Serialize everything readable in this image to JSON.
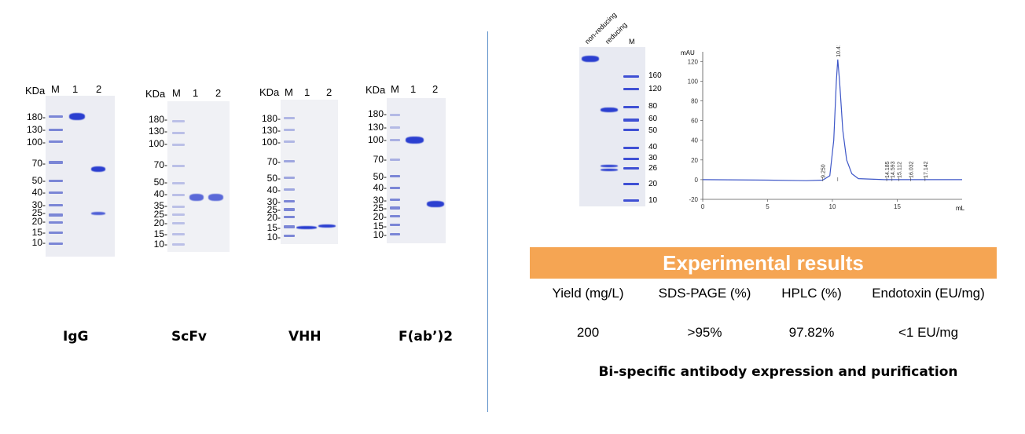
{
  "gels": [
    {
      "caption": "IgG",
      "header": {
        "kda": "KDa",
        "m": "M",
        "lane1": "1",
        "lane2": "2"
      },
      "mw_labels": [
        "180-",
        "130-",
        "100-",
        "70-",
        "50-",
        "40-",
        "30-",
        "25-",
        "20-",
        "15-",
        "10-"
      ]
    },
    {
      "caption": "ScFv",
      "header": {
        "kda": "KDa",
        "m": "M",
        "lane1": "1",
        "lane2": "2"
      },
      "mw_labels": [
        "180-",
        "130-",
        "100-",
        "70-",
        "50-",
        "40-",
        "35-",
        "25-",
        "20-",
        "15-",
        "10-"
      ]
    },
    {
      "caption": "VHH",
      "header": {
        "kda": "KDa",
        "m": "M",
        "lane1": "1",
        "lane2": "2"
      },
      "mw_labels": [
        "180-",
        "130-",
        "100-",
        "70-",
        "50-",
        "40-",
        "30-",
        "25-",
        "20-",
        "15-",
        "10-"
      ]
    },
    {
      "caption": "F(ab’)2",
      "header": {
        "kda": "KDa",
        "m": "M",
        "lane1": "1",
        "lane2": "2"
      },
      "mw_labels": [
        "180-",
        "130-",
        "100-",
        "70-",
        "50-",
        "40-",
        "30-",
        "25-",
        "20-",
        "15-",
        "10-"
      ]
    }
  ],
  "bispecific_gel": {
    "lane_labels": [
      "non-reducing",
      "reducing",
      "M"
    ],
    "mw_labels": [
      "160",
      "120",
      "80",
      "60",
      "50",
      "40",
      "30",
      "26",
      "20",
      "10"
    ]
  },
  "chart_data": {
    "type": "line",
    "title": "",
    "xlabel": "mL",
    "ylabel": "mAU",
    "xlim": [
      0,
      20
    ],
    "ylim": [
      -20,
      125
    ],
    "x_ticks": [
      0,
      5,
      10,
      15
    ],
    "y_ticks": [
      -20,
      0,
      20,
      40,
      60,
      80,
      100,
      120
    ],
    "series": [
      {
        "x": [
          0,
          5,
          8,
          9.25,
          9.8,
          10.1,
          10.3,
          10.411,
          10.55,
          10.8,
          11.1,
          11.5,
          12,
          14,
          20
        ],
        "y": [
          0,
          -0.5,
          -1,
          -0.5,
          4,
          40,
          100,
          122,
          100,
          50,
          20,
          6,
          1,
          0,
          0
        ]
      }
    ],
    "peak_labels": [
      "9.250",
      "10.411",
      "14.185",
      "14.593",
      "15.112",
      "16.032",
      "17.142"
    ],
    "peak_positions": [
      9.25,
      10.411,
      14.185,
      14.593,
      15.112,
      16.032,
      17.142
    ]
  },
  "results": {
    "title": "Experimental results",
    "columns": [
      "Yield (mg/L)",
      "SDS-PAGE (%)",
      "HPLC (%)",
      "Endotoxin (EU/mg)"
    ],
    "values": [
      "200",
      ">95%",
      "97.82%",
      "<1 EU/mg"
    ]
  },
  "caption": "Bi-specific antibody expression and purification",
  "colors": {
    "accent": "#f5a553",
    "divider": "#5b8fc9",
    "band": "#2b3fd0"
  }
}
